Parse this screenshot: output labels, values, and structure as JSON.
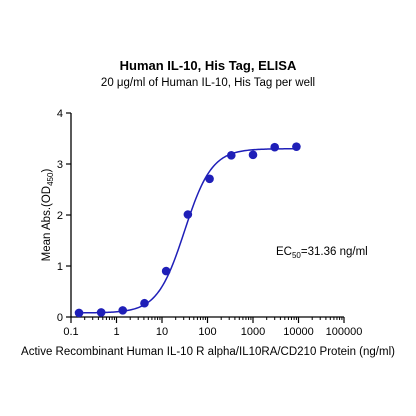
{
  "chart_data": {
    "type": "scatter",
    "title": "Human IL-10, His Tag, ELISA",
    "subtitle": "20 μg/ml of Human IL-10, His Tag per well",
    "xlabel": "Active Recombinant Human IL-10 R alpha/IL10RA/CD210 Protein (ng/ml)",
    "ylabel": {
      "main": "Mean Abs.(OD",
      "sub": "450",
      "close": ")"
    },
    "x_scale": "log10",
    "xlim": [
      0.1,
      100000
    ],
    "ylim": [
      0,
      4
    ],
    "x_ticks": [
      {
        "value": 0.1,
        "label": "0.1"
      },
      {
        "value": 1,
        "label": "1"
      },
      {
        "value": 10,
        "label": "10"
      },
      {
        "value": 100,
        "label": "100"
      },
      {
        "value": 1000,
        "label": "1000"
      },
      {
        "value": 10000,
        "label": "10000"
      },
      {
        "value": 100000,
        "label": "100000"
      }
    ],
    "y_ticks": [
      {
        "value": 0,
        "label": "0"
      },
      {
        "value": 1,
        "label": "1"
      },
      {
        "value": 2,
        "label": "2"
      },
      {
        "value": 3,
        "label": "3"
      },
      {
        "value": 4,
        "label": "4"
      }
    ],
    "grid": false,
    "series": [
      {
        "color": "#1f1fb8",
        "points": [
          {
            "x": 0.15,
            "y": 0.08
          },
          {
            "x": 0.46,
            "y": 0.09
          },
          {
            "x": 1.37,
            "y": 0.13
          },
          {
            "x": 4.12,
            "y": 0.27
          },
          {
            "x": 12.35,
            "y": 0.9
          },
          {
            "x": 37.04,
            "y": 2.01
          },
          {
            "x": 111.1,
            "y": 2.71
          },
          {
            "x": 333.3,
            "y": 3.17
          },
          {
            "x": 1000,
            "y": 3.18
          },
          {
            "x": 3000,
            "y": 3.33
          },
          {
            "x": 9000,
            "y": 3.34
          }
        ],
        "fit": {
          "model": "4PL",
          "bottom": 0.08,
          "top": 3.3,
          "ec50": 31.36,
          "hill": 1.45,
          "x_range": [
            0.15,
            9000
          ]
        }
      }
    ],
    "annotations": [
      {
        "main": "EC",
        "sub": "50",
        "rest": "=31.36 ng/ml"
      }
    ]
  }
}
